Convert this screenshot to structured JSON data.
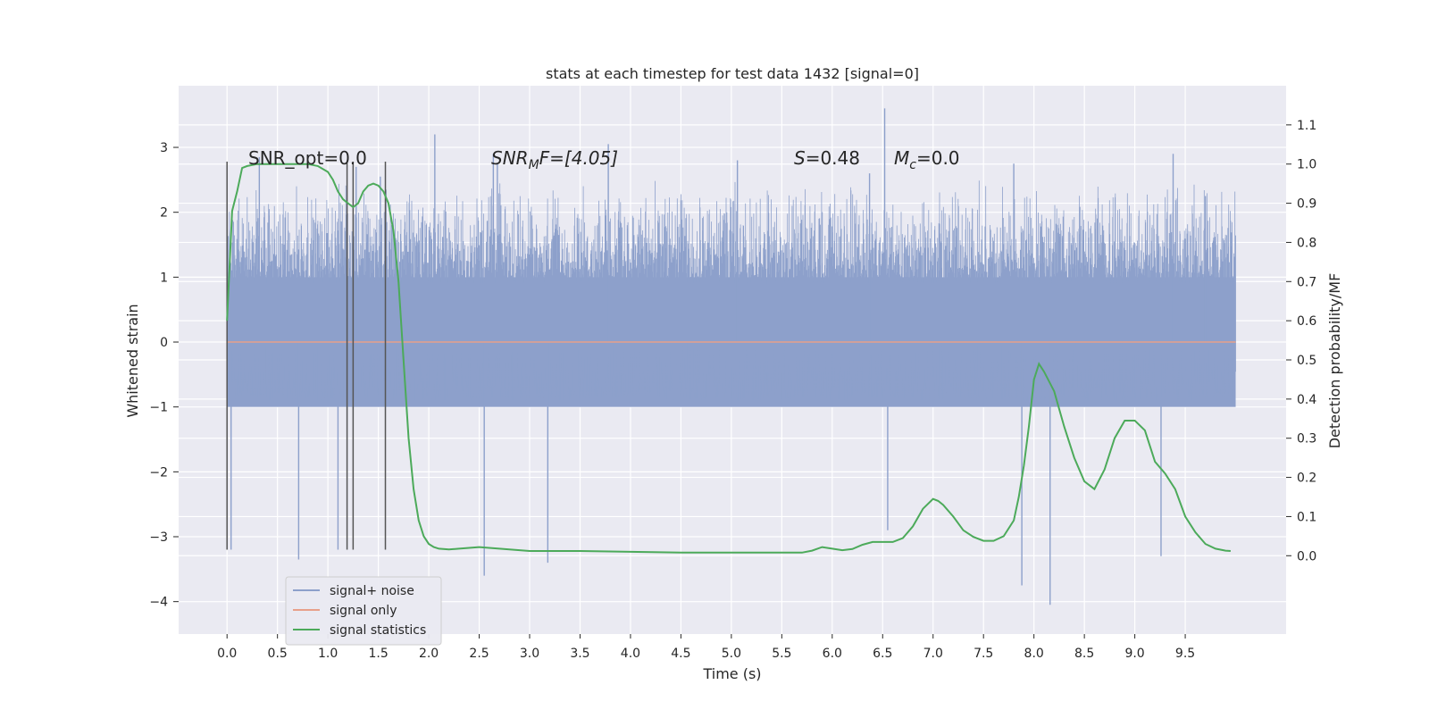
{
  "chart_data": {
    "type": "line",
    "title": "stats at each timestep for test data 1432 [signal=0]",
    "xlabel": "Time (s)",
    "ylabel_left": "Whitened strain",
    "ylabel_right": "Detection probability/MF",
    "xlim": [
      -0.48,
      10.5
    ],
    "ylim_left": [
      -4.5,
      3.95
    ],
    "ylim_right": [
      -0.2,
      1.2
    ],
    "x_ticks": [
      0.0,
      0.5,
      1.0,
      1.5,
      2.0,
      2.5,
      3.0,
      3.5,
      4.0,
      4.5,
      5.0,
      5.5,
      6.0,
      6.5,
      7.0,
      7.5,
      8.0,
      8.5,
      9.0,
      9.5
    ],
    "x_tick_labels": [
      "0.0",
      "0.5",
      "1.0",
      "1.5",
      "2.0",
      "2.5",
      "3.0",
      "3.5",
      "4.0",
      "4.5",
      "5.0",
      "5.5",
      "6.0",
      "6.5",
      "7.0",
      "7.5",
      "8.0",
      "8.5",
      "9.0",
      "9.5"
    ],
    "y_left_ticks": [
      -4,
      -3,
      -2,
      -1,
      0,
      1,
      2,
      3
    ],
    "y_left_tick_labels": [
      "−4",
      "−3",
      "−2",
      "−1",
      "0",
      "1",
      "2",
      "3"
    ],
    "y_right_ticks": [
      0.0,
      0.1,
      0.2,
      0.3,
      0.4,
      0.5,
      0.6,
      0.7,
      0.8,
      0.9,
      1.0,
      1.1
    ],
    "y_right_tick_labels": [
      "0.0",
      "0.1",
      "0.2",
      "0.3",
      "0.4",
      "0.5",
      "0.6",
      "0.7",
      "0.8",
      "0.9",
      "1.0",
      "1.1"
    ],
    "grid": true,
    "legend_position": "lower-left",
    "annotations": {
      "snr_opt": "SNR_opt=0.0",
      "snr_mf_base": "SNR",
      "snr_mf_sub": "M",
      "snr_mf_rest": "F=[4.05]",
      "s_var": "S",
      "s_value": "=0.48",
      "mc_var": "M",
      "mc_sub": "c",
      "mc_value": "=0.0"
    },
    "vertical_markers_x": [
      0.0,
      1.19,
      1.25,
      1.57
    ],
    "series": [
      {
        "name": "signal+ noise",
        "axis": "left",
        "color": "#8da0cb",
        "x_range": [
          0.0,
          10.0
        ],
        "band_low": -1.0,
        "band_high": 1.0,
        "envelope_low": -2.0,
        "envelope_high": 2.5,
        "spikes": [
          {
            "x": 0.04,
            "y": -3.2
          },
          {
            "x": 0.32,
            "y": 2.85
          },
          {
            "x": 0.71,
            "y": -3.35
          },
          {
            "x": 1.1,
            "y": -3.2
          },
          {
            "x": 1.28,
            "y": 2.7
          },
          {
            "x": 1.52,
            "y": 2.55
          },
          {
            "x": 2.06,
            "y": 3.2
          },
          {
            "x": 2.55,
            "y": -3.6
          },
          {
            "x": 2.64,
            "y": 2.9
          },
          {
            "x": 2.68,
            "y": 2.75
          },
          {
            "x": 3.18,
            "y": -3.4
          },
          {
            "x": 3.78,
            "y": 3.05
          },
          {
            "x": 5.06,
            "y": 2.8
          },
          {
            "x": 6.37,
            "y": 2.6
          },
          {
            "x": 6.52,
            "y": 3.6
          },
          {
            "x": 6.55,
            "y": -2.9
          },
          {
            "x": 7.8,
            "y": 2.75
          },
          {
            "x": 7.88,
            "y": -3.75
          },
          {
            "x": 8.16,
            "y": -4.05
          },
          {
            "x": 9.26,
            "y": -3.3
          },
          {
            "x": 9.38,
            "y": 2.9
          },
          {
            "x": 9.7,
            "y": 2.25
          }
        ]
      },
      {
        "name": "signal only",
        "axis": "left",
        "color": "#e8a08a",
        "x": [
          0.0,
          10.0
        ],
        "y": [
          0.0,
          0.0
        ]
      },
      {
        "name": "signal statistics",
        "axis": "right",
        "color": "#4caa5a",
        "x": [
          0.0,
          0.05,
          0.1,
          0.15,
          0.2,
          0.3,
          0.5,
          0.7,
          0.8,
          0.9,
          1.0,
          1.05,
          1.1,
          1.15,
          1.2,
          1.25,
          1.3,
          1.35,
          1.4,
          1.45,
          1.5,
          1.55,
          1.6,
          1.65,
          1.7,
          1.75,
          1.8,
          1.85,
          1.9,
          1.95,
          2.0,
          2.05,
          2.1,
          2.2,
          2.3,
          2.5,
          2.7,
          3.0,
          3.5,
          4.0,
          4.5,
          5.0,
          5.5,
          5.7,
          5.8,
          5.9,
          6.0,
          6.1,
          6.2,
          6.3,
          6.4,
          6.5,
          6.6,
          6.7,
          6.8,
          6.9,
          7.0,
          7.05,
          7.1,
          7.2,
          7.3,
          7.4,
          7.5,
          7.6,
          7.7,
          7.8,
          7.85,
          7.9,
          7.95,
          8.0,
          8.05,
          8.1,
          8.2,
          8.3,
          8.4,
          8.5,
          8.6,
          8.7,
          8.8,
          8.9,
          9.0,
          9.1,
          9.2,
          9.3,
          9.4,
          9.5,
          9.6,
          9.7,
          9.8,
          9.9,
          9.95
        ],
        "y": [
          0.6,
          0.88,
          0.93,
          0.99,
          0.995,
          1.0,
          1.0,
          1.0,
          1.0,
          0.995,
          0.98,
          0.96,
          0.93,
          0.91,
          0.9,
          0.89,
          0.9,
          0.93,
          0.945,
          0.95,
          0.945,
          0.93,
          0.9,
          0.83,
          0.7,
          0.5,
          0.3,
          0.17,
          0.09,
          0.05,
          0.03,
          0.022,
          0.018,
          0.016,
          0.018,
          0.022,
          0.018,
          0.012,
          0.012,
          0.01,
          0.008,
          0.008,
          0.008,
          0.008,
          0.013,
          0.022,
          0.018,
          0.014,
          0.017,
          0.028,
          0.035,
          0.035,
          0.035,
          0.045,
          0.075,
          0.12,
          0.145,
          0.14,
          0.13,
          0.1,
          0.065,
          0.048,
          0.038,
          0.038,
          0.05,
          0.09,
          0.15,
          0.23,
          0.33,
          0.45,
          0.49,
          0.47,
          0.42,
          0.33,
          0.25,
          0.19,
          0.17,
          0.22,
          0.3,
          0.345,
          0.345,
          0.32,
          0.24,
          0.21,
          0.17,
          0.1,
          0.06,
          0.03,
          0.018,
          0.013,
          0.012
        ]
      }
    ]
  }
}
